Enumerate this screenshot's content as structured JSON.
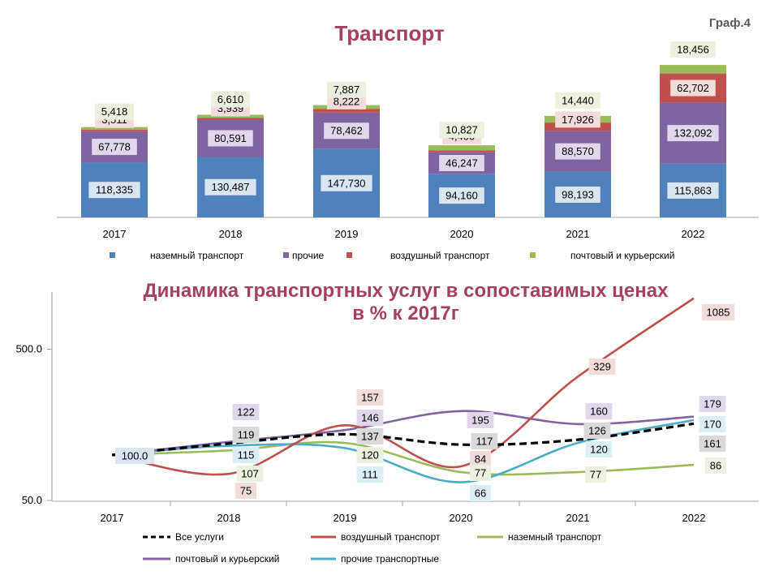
{
  "corner_label": "Граф.4",
  "chart_data": [
    {
      "type": "bar",
      "stacked": true,
      "title": "Транспорт",
      "categories": [
        "2017",
        "2018",
        "2019",
        "2020",
        "2021",
        "2022"
      ],
      "series": [
        {
          "name": "наземный транспорт",
          "color": "#4f81bd",
          "label_bg": "#dbe5f1",
          "values": [
            118335,
            130487,
            147730,
            94160,
            98193,
            115863
          ]
        },
        {
          "name": "прочие",
          "color": "#8064a2",
          "label_bg": "#e0d7ec",
          "values": [
            67778,
            80591,
            78462,
            46247,
            88570,
            132092
          ]
        },
        {
          "name": "воздушный транспорт",
          "color": "#c0504d",
          "label_bg": "#f2dcdb",
          "values": [
            3511,
            3939,
            8222,
            4400,
            17926,
            62702
          ]
        },
        {
          "name": "почтовый  и курьерский",
          "color": "#9bbb59",
          "label_bg": "#ebf1de",
          "values": [
            5418,
            6610,
            7887,
            10827,
            14440,
            18456
          ]
        }
      ],
      "data_labels": [
        [
          "118,335",
          "130,487",
          "147,730",
          "94,160",
          "98,193",
          "115,863"
        ],
        [
          "67,778",
          "80,591",
          "78,462",
          "46,247",
          "88,570",
          "132,092"
        ],
        [
          "3,511",
          "3,939",
          "8,222",
          "4,400",
          "17,926",
          "62,702"
        ],
        [
          "5,418",
          "6,610",
          "7,887",
          "10,827",
          "14,440",
          "18,456"
        ]
      ],
      "legend_position": "bottom",
      "grid": false
    },
    {
      "type": "line",
      "smooth": true,
      "title_line1": "Динамика транспортных услуг в сопоставимых ценах",
      "title_line2": "в % к 2017г",
      "x": [
        "2017",
        "2018",
        "2019",
        "2020",
        "2021",
        "2022"
      ],
      "y_scale": "log",
      "ylim": [
        50,
        1085
      ],
      "yticks": [
        50,
        500
      ],
      "ytick_labels": [
        "50.0",
        "500.0"
      ],
      "start_label": "100.0",
      "series": [
        {
          "name": "Все услуги",
          "color": "#000000",
          "dashed": true,
          "label_bg": "#d9d9d9",
          "values": [
            100,
            119,
            137,
            117,
            126,
            161
          ],
          "labels": [
            "",
            "119",
            "137",
            "117",
            "126",
            "161"
          ]
        },
        {
          "name": "воздушный транспорт",
          "color": "#c0504d",
          "dashed": false,
          "label_bg": "#f2dcdb",
          "values": [
            100,
            75,
            157,
            84,
            329,
            1085
          ],
          "labels": [
            "",
            "75",
            "157",
            "84",
            "329",
            "1085"
          ]
        },
        {
          "name": "наземный транспорт",
          "color": "#9bbb59",
          "dashed": false,
          "label_bg": "#ebf1de",
          "values": [
            100,
            107,
            120,
            77,
            77,
            86
          ],
          "labels": [
            "",
            "107",
            "120",
            "77",
            "77",
            "86"
          ]
        },
        {
          "name": "почтовый  и курьерский",
          "color": "#8064a2",
          "dashed": false,
          "label_bg": "#e0d7ec",
          "values": [
            100,
            122,
            146,
            195,
            160,
            179
          ],
          "labels": [
            "",
            "122",
            "146",
            "195",
            "160",
            "179"
          ]
        },
        {
          "name": "прочие транспортные",
          "color": "#4bacc6",
          "dashed": false,
          "label_bg": "#dbeef3",
          "values": [
            100,
            115,
            111,
            66,
            120,
            170
          ],
          "labels": [
            "",
            "115",
            "111",
            "66",
            "120",
            "170"
          ]
        }
      ],
      "legend_position": "bottom",
      "grid": false
    }
  ]
}
